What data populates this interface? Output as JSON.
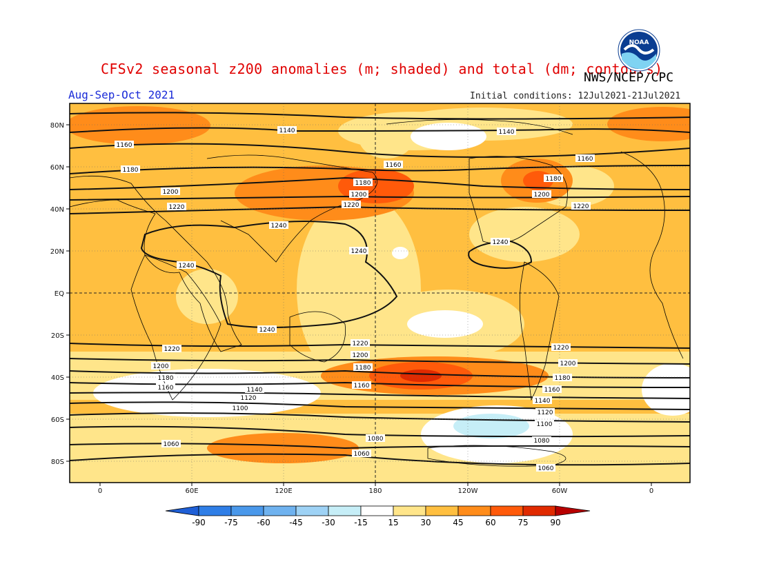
{
  "header": {
    "title": "CFSv2 seasonal z200 anomalies (m; shaded) and total (dm; contours)",
    "agency": "NWS/NCEP/CPC",
    "season": "Aug-Sep-Oct 2021",
    "initial_conditions": "Initial conditions: 12Jul2021-21Jul2021",
    "logo_text": "NOAA"
  },
  "axes": {
    "lat_labels": [
      "80N",
      "60N",
      "40N",
      "20N",
      "EQ",
      "20S",
      "40S",
      "60S",
      "80S"
    ],
    "lon_labels": [
      "0",
      "60E",
      "120E",
      "180",
      "120W",
      "60W",
      "0"
    ]
  },
  "contour_labels": [
    "1140",
    "1140",
    "1160",
    "1160",
    "1160",
    "1180",
    "1180",
    "1180",
    "1200",
    "1200",
    "1200",
    "1220",
    "1220",
    "1220",
    "1240",
    "1240",
    "1240",
    "1240",
    "1240",
    "1220",
    "1220",
    "1220",
    "1200",
    "1200",
    "1200",
    "1180",
    "1180",
    "1180",
    "1160",
    "1160",
    "1160",
    "1140",
    "1140",
    "1120",
    "1120",
    "1100",
    "1100",
    "1080",
    "1080",
    "1060",
    "1060",
    "1060"
  ],
  "colorbar": {
    "ticks": [
      "-90",
      "-75",
      "-60",
      "-45",
      "-30",
      "-15",
      "15",
      "30",
      "45",
      "60",
      "75",
      "90"
    ],
    "colors": [
      "#1f5fd6",
      "#2f7ee6",
      "#4a98ea",
      "#6fb2ef",
      "#9ed2f5",
      "#c6eef7",
      "#ffffff",
      "#ffe58a",
      "#ffbf40",
      "#ff8c1a",
      "#ff5a0a",
      "#e02a00",
      "#b80000"
    ]
  },
  "colors": {
    "ocean_base": "#ffbf40",
    "light": "#ffe58a",
    "medium": "#ff8c1a",
    "strong": "#ff5a0a",
    "title": "#e00000",
    "season": "#1a2bd8"
  }
}
